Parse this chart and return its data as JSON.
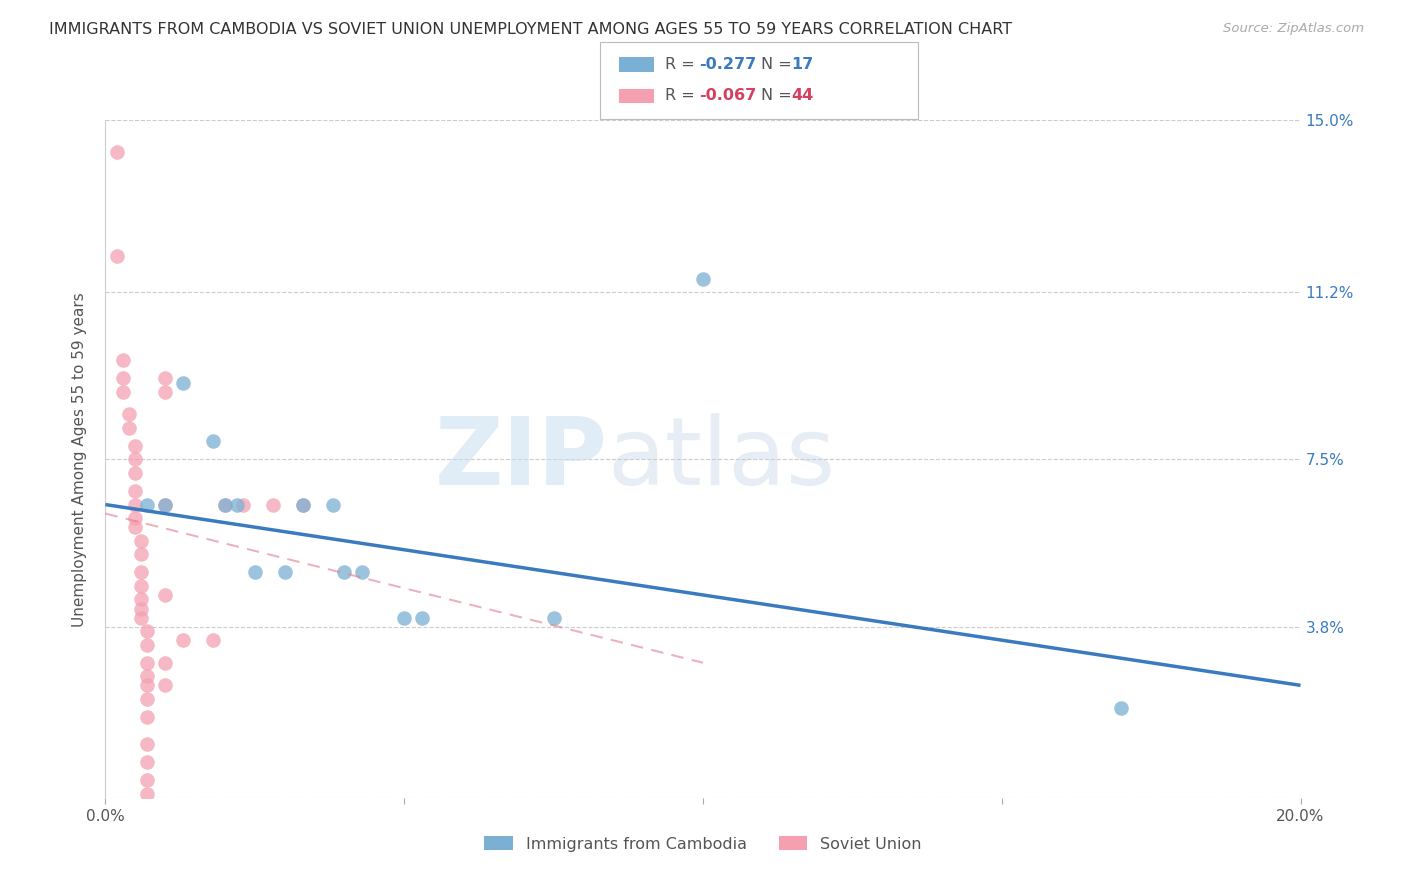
{
  "title": "IMMIGRANTS FROM CAMBODIA VS SOVIET UNION UNEMPLOYMENT AMONG AGES 55 TO 59 YEARS CORRELATION CHART",
  "source": "Source: ZipAtlas.com",
  "ylabel": "Unemployment Among Ages 55 to 59 years",
  "xmin": 0.0,
  "xmax": 0.2,
  "ymin": 0.0,
  "ymax": 0.15,
  "xticks": [
    0.0,
    0.05,
    0.1,
    0.15,
    0.2
  ],
  "xtick_labels": [
    "0.0%",
    "",
    "",
    "",
    "20.0%"
  ],
  "ytick_positions": [
    0.0,
    0.038,
    0.075,
    0.112,
    0.15
  ],
  "ytick_labels_right": [
    "",
    "3.8%",
    "7.5%",
    "11.2%",
    "15.0%"
  ],
  "cambodia_color": "#7bafd4",
  "soviet_color": "#f4a0b0",
  "cambodia_scatter": [
    [
      0.007,
      0.065
    ],
    [
      0.01,
      0.065
    ],
    [
      0.013,
      0.092
    ],
    [
      0.018,
      0.079
    ],
    [
      0.02,
      0.065
    ],
    [
      0.022,
      0.065
    ],
    [
      0.025,
      0.05
    ],
    [
      0.03,
      0.05
    ],
    [
      0.033,
      0.065
    ],
    [
      0.038,
      0.065
    ],
    [
      0.04,
      0.05
    ],
    [
      0.043,
      0.05
    ],
    [
      0.05,
      0.04
    ],
    [
      0.053,
      0.04
    ],
    [
      0.075,
      0.04
    ],
    [
      0.1,
      0.115
    ],
    [
      0.17,
      0.02
    ]
  ],
  "soviet_scatter": [
    [
      0.002,
      0.143
    ],
    [
      0.002,
      0.12
    ],
    [
      0.003,
      0.097
    ],
    [
      0.003,
      0.093
    ],
    [
      0.003,
      0.09
    ],
    [
      0.004,
      0.085
    ],
    [
      0.004,
      0.082
    ],
    [
      0.005,
      0.078
    ],
    [
      0.005,
      0.075
    ],
    [
      0.005,
      0.072
    ],
    [
      0.005,
      0.068
    ],
    [
      0.005,
      0.065
    ],
    [
      0.005,
      0.062
    ],
    [
      0.005,
      0.06
    ],
    [
      0.006,
      0.057
    ],
    [
      0.006,
      0.054
    ],
    [
      0.006,
      0.05
    ],
    [
      0.006,
      0.047
    ],
    [
      0.006,
      0.044
    ],
    [
      0.006,
      0.042
    ],
    [
      0.006,
      0.04
    ],
    [
      0.007,
      0.037
    ],
    [
      0.007,
      0.034
    ],
    [
      0.007,
      0.03
    ],
    [
      0.007,
      0.027
    ],
    [
      0.007,
      0.025
    ],
    [
      0.007,
      0.022
    ],
    [
      0.007,
      0.018
    ],
    [
      0.007,
      0.012
    ],
    [
      0.007,
      0.008
    ],
    [
      0.007,
      0.004
    ],
    [
      0.007,
      0.001
    ],
    [
      0.01,
      0.093
    ],
    [
      0.01,
      0.09
    ],
    [
      0.01,
      0.065
    ],
    [
      0.01,
      0.045
    ],
    [
      0.01,
      0.03
    ],
    [
      0.01,
      0.025
    ],
    [
      0.013,
      0.035
    ],
    [
      0.018,
      0.035
    ],
    [
      0.02,
      0.065
    ],
    [
      0.023,
      0.065
    ],
    [
      0.028,
      0.065
    ],
    [
      0.033,
      0.065
    ]
  ],
  "cambodia_trend_x": [
    0.0,
    0.2
  ],
  "cambodia_trend_y": [
    0.065,
    0.025
  ],
  "soviet_trend_x": [
    0.0,
    0.1
  ],
  "soviet_trend_y": [
    0.063,
    0.03
  ],
  "soviet_trend_dashed": true,
  "watermark_zip": "ZIP",
  "watermark_atlas": "atlas",
  "background_color": "#ffffff",
  "grid_color": "#cccccc",
  "title_fontsize": 11.5,
  "axis_label_fontsize": 11,
  "tick_fontsize": 11,
  "marker_size": 110,
  "legend_r1": "-0.277",
  "legend_n1": "17",
  "legend_r2": "-0.067",
  "legend_n2": "44"
}
